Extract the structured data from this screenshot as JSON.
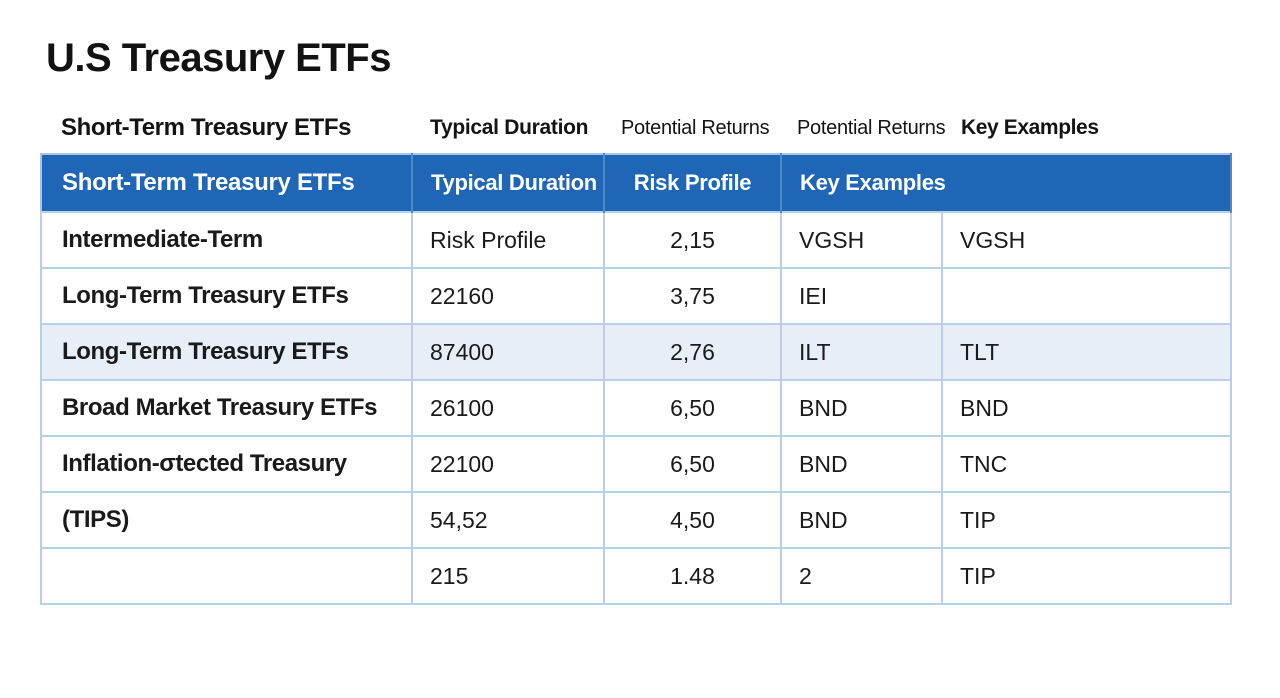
{
  "title": "U.S Treasury ETFs",
  "pre_header": [
    "Short-Term Treasury ETFs",
    "Typical Duration",
    "Potential Returns",
    "Potential Returns",
    "Key Examples"
  ],
  "table": {
    "headers": [
      "Short-Term Treasury ETFs",
      "Typical Duration",
      "Risk Profile",
      "Key Examples",
      ""
    ],
    "rows": [
      [
        "Intermediate-Term",
        "Risk Profile",
        "2,15",
        "VGSH",
        "VGSH"
      ],
      [
        "Long-Term Treasury ETFs",
        "22160",
        "3,75",
        "IEI",
        ""
      ],
      [
        "Long-Term Treasury ETFs",
        "87400",
        "2,76",
        "ILT",
        "TLT"
      ],
      [
        "Broad Market Treasury ETFs",
        "26100",
        "6,50",
        "BND",
        "BND"
      ],
      [
        "Inflation-σtected Treasury",
        "22100",
        "6,50",
        "BND",
        "TNC"
      ],
      [
        "(TIPS)",
        "54,52",
        "4,50",
        "BND",
        "TIP"
      ],
      [
        "",
        "215",
        "1.48",
        "2",
        "TIP"
      ]
    ],
    "shaded_row_index": 2
  },
  "colors": {
    "header_bg": "#1f66b6",
    "header_text": "#ffffff",
    "grid_line": "#b9cfe6",
    "shaded_row_bg": "#e6eef8"
  }
}
